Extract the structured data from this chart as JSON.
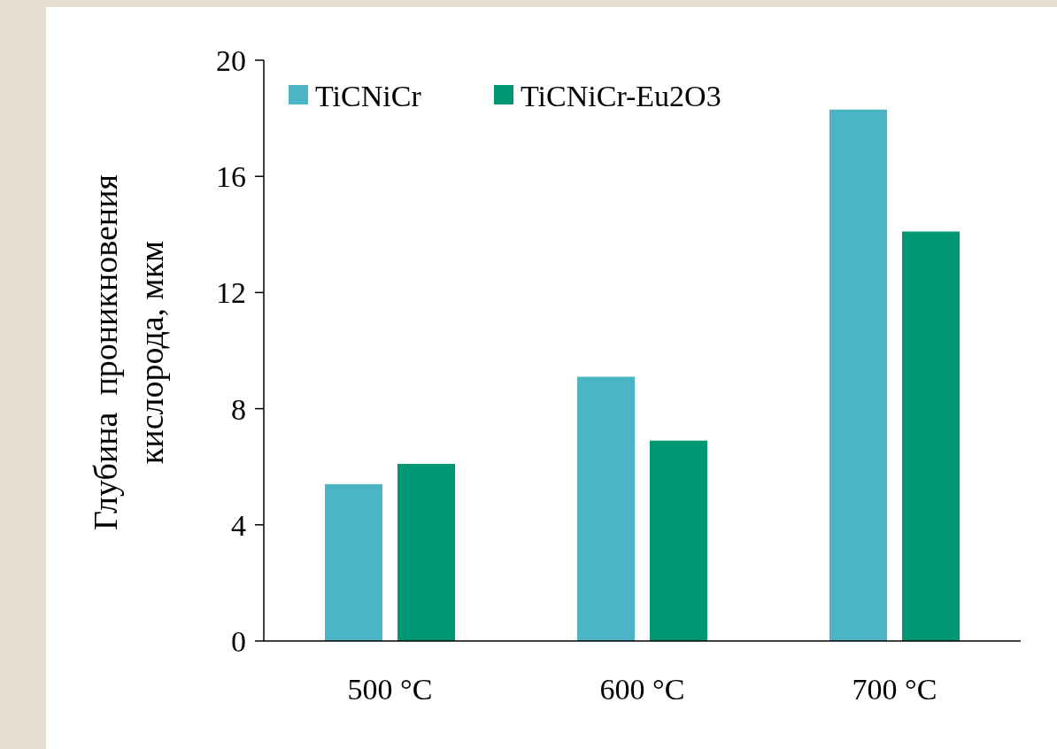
{
  "chart_data": {
    "type": "bar",
    "ylabel": "Глубина  проникновения\nкислорода, мкм",
    "categories": [
      "500 °C",
      "600 °C",
      "700 °C"
    ],
    "series": [
      {
        "name": "TiCNiCr",
        "color": "#4bb5c6",
        "values": [
          5.4,
          9.1,
          18.3
        ]
      },
      {
        "name": "TiCNiCr-Eu2O3",
        "color": "#009775",
        "values": [
          6.1,
          6.9,
          14.1
        ]
      }
    ],
    "ylim": [
      0,
      20
    ],
    "yticks": [
      0,
      4,
      8,
      12,
      16,
      20
    ],
    "legend": "top left",
    "grid": false
  }
}
